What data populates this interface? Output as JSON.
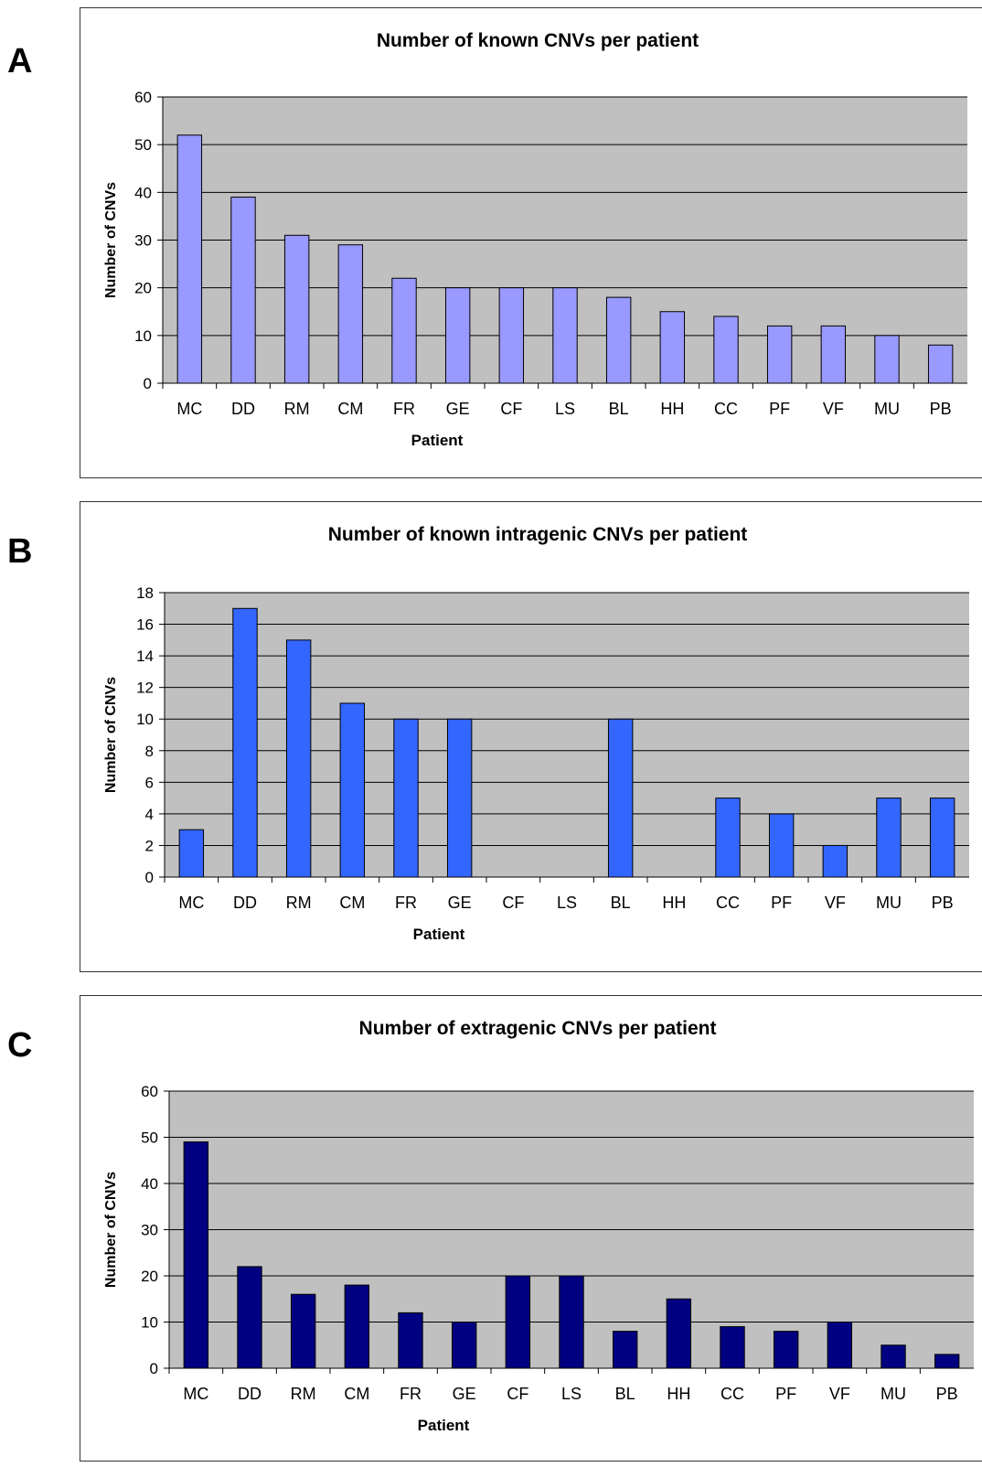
{
  "panels": [
    {
      "letter": "A"
    },
    {
      "letter": "B"
    },
    {
      "letter": "C"
    }
  ],
  "chart_data": [
    {
      "type": "bar",
      "title": "Number of known CNVs per patient",
      "xlabel": "Patient",
      "ylabel": "Number of CNVs",
      "categories": [
        "MC",
        "DD",
        "RM",
        "CM",
        "FR",
        "GE",
        "CF",
        "LS",
        "BL",
        "HH",
        "CC",
        "PF",
        "VF",
        "MU",
        "PB"
      ],
      "values": [
        52,
        39,
        31,
        29,
        22,
        20,
        20,
        20,
        18,
        15,
        14,
        12,
        12,
        10,
        8
      ],
      "ylim": [
        0,
        60
      ],
      "yticks": [
        0,
        10,
        20,
        30,
        40,
        50,
        60
      ],
      "grid": true,
      "plot_background": "#c0c0c0",
      "bar_color": "#9999ff"
    },
    {
      "type": "bar",
      "title": "Number of known intragenic CNVs per patient",
      "xlabel": "Patient",
      "ylabel": "Number of CNVs",
      "categories": [
        "MC",
        "DD",
        "RM",
        "CM",
        "FR",
        "GE",
        "CF",
        "LS",
        "BL",
        "HH",
        "CC",
        "PF",
        "VF",
        "MU",
        "PB"
      ],
      "values": [
        3,
        17,
        15,
        11,
        10,
        10,
        0,
        0,
        10,
        0,
        5,
        4,
        2,
        5,
        5
      ],
      "ylim": [
        0,
        18
      ],
      "yticks": [
        0,
        2,
        4,
        6,
        8,
        10,
        12,
        14,
        16,
        18
      ],
      "grid": true,
      "plot_background": "#c0c0c0",
      "bar_color": "#3366ff"
    },
    {
      "type": "bar",
      "title": "Number of extragenic CNVs per patient",
      "xlabel": "Patient",
      "ylabel": "Number of CNVs",
      "categories": [
        "MC",
        "DD",
        "RM",
        "CM",
        "FR",
        "GE",
        "CF",
        "LS",
        "BL",
        "HH",
        "CC",
        "PF",
        "VF",
        "MU",
        "PB"
      ],
      "values": [
        49,
        22,
        16,
        18,
        12,
        10,
        20,
        20,
        8,
        15,
        9,
        8,
        10,
        5,
        3
      ],
      "ylim": [
        0,
        60
      ],
      "yticks": [
        0,
        10,
        20,
        30,
        40,
        50,
        60
      ],
      "grid": true,
      "plot_background": "#c0c0c0",
      "bar_color": "#000080"
    }
  ]
}
